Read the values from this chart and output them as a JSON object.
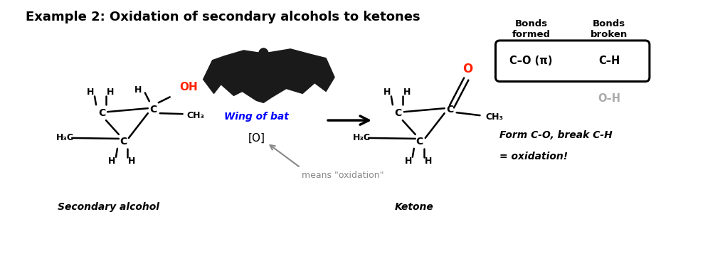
{
  "title": "Example 2: Oxidation of secondary alcohols to ketones",
  "title_fontsize": 13,
  "bg_color": "#ffffff",
  "secondary_alcohol_label": "Secondary alcohol",
  "ketone_label": "Ketone",
  "wing_label": "Wing of bat",
  "wing_color": "#0000ff",
  "oxidant_label": "[O]",
  "means_label": "means \"oxidation\"",
  "means_color": "#888888",
  "arrow_color": "#888888",
  "bonds_formed_label": "Bonds\nformed",
  "bonds_broken_label": "Bonds\nbroken",
  "bond_formed_value": "C–O (π)",
  "bond_broken_value": "C–H",
  "bond_oh_value": "O–H",
  "bond_oh_color": "#aaaaaa",
  "form_break_label": "Form C-O, break C-H",
  "oxidation_label": "= oxidation!",
  "oh_color": "#ff2200",
  "o_color": "#ff2200"
}
